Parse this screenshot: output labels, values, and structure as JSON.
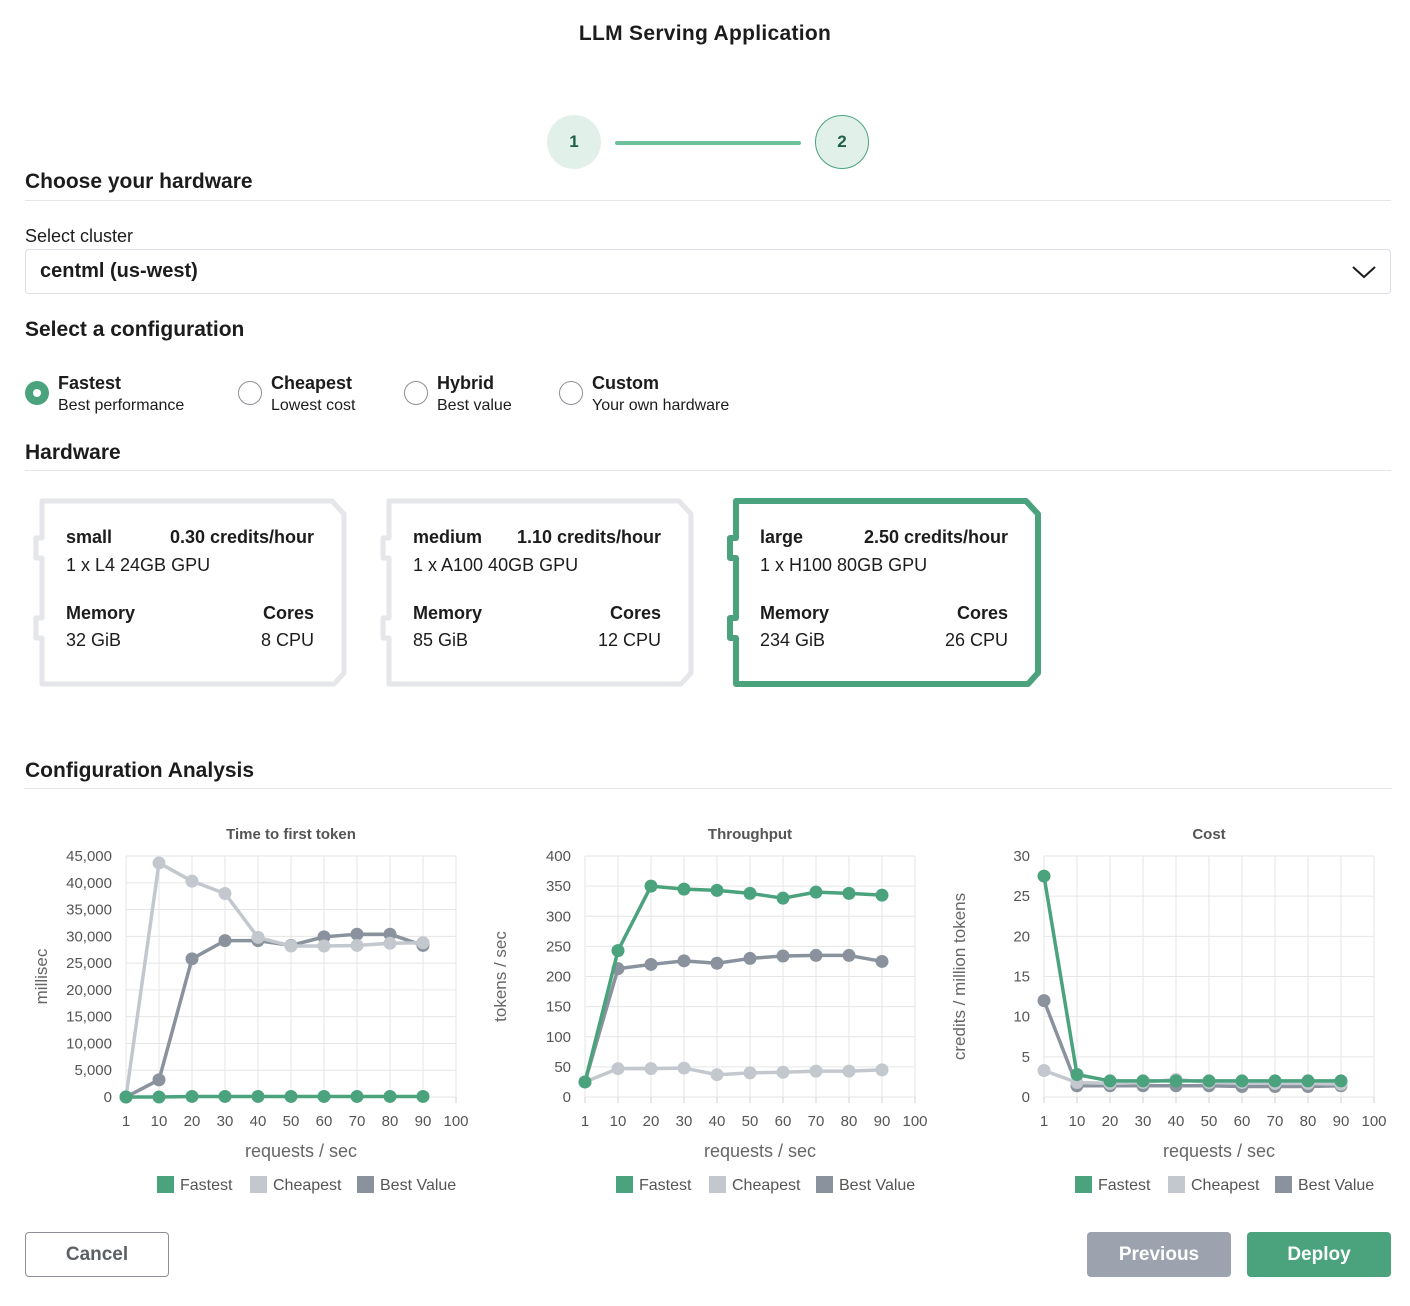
{
  "app": {
    "title": "LLM Serving Application"
  },
  "stepper": {
    "steps": [
      "1",
      "2"
    ]
  },
  "hardware_section": {
    "title": "Choose your hardware"
  },
  "cluster": {
    "label": "Select cluster",
    "selected": "centml (us-west)"
  },
  "configuration": {
    "title": "Select a configuration",
    "options": [
      {
        "title": "Fastest",
        "subtitle": "Best performance",
        "selected": true
      },
      {
        "title": "Cheapest",
        "subtitle": "Lowest cost",
        "selected": false
      },
      {
        "title": "Hybrid",
        "subtitle": "Best value",
        "selected": false
      },
      {
        "title": "Custom",
        "subtitle": "Your own hardware",
        "selected": false
      }
    ]
  },
  "hardware": {
    "title": "Hardware",
    "cards": [
      {
        "name": "small",
        "price": "0.30 credits/hour",
        "gpu": "1 x L4 24GB GPU",
        "memory_label": "Memory",
        "memory": "32 GiB",
        "cores_label": "Cores",
        "cores": "8 CPU",
        "selected": false
      },
      {
        "name": "medium",
        "price": "1.10 credits/hour",
        "gpu": "1 x A100 40GB GPU",
        "memory_label": "Memory",
        "memory": "85 GiB",
        "cores_label": "Cores",
        "cores": "12 CPU",
        "selected": false
      },
      {
        "name": "large",
        "price": "2.50 credits/hour",
        "gpu": "1 x H100 80GB GPU",
        "memory_label": "Memory",
        "memory": "234 GiB",
        "cores_label": "Cores",
        "cores": "26 CPU",
        "selected": true
      }
    ]
  },
  "analysis": {
    "title": "Configuration Analysis"
  },
  "colors": {
    "fastest": "#4aa37d",
    "cheapest": "#c3c8ce",
    "best_value": "#8a939d",
    "accent": "#4aa37d"
  },
  "chart_data": [
    {
      "type": "line",
      "title": "Time to first token",
      "xlabel": "requests / sec",
      "ylabel": "millisec",
      "x": [
        1,
        10,
        20,
        30,
        40,
        50,
        60,
        70,
        80,
        90
      ],
      "xticks": [
        "1",
        "10",
        "20",
        "30",
        "40",
        "50",
        "60",
        "70",
        "80",
        "90",
        "100"
      ],
      "yticks": [
        "0",
        "5,000",
        "10,000",
        "15,000",
        "20,000",
        "25,000",
        "30,000",
        "35,000",
        "40,000",
        "45,000"
      ],
      "ylim": [
        0,
        45000
      ],
      "grid": true,
      "legend": "bottom",
      "series": [
        {
          "name": "Fastest",
          "values": [
            0,
            0,
            100,
            100,
            100,
            100,
            100,
            100,
            100,
            100
          ]
        },
        {
          "name": "Cheapest",
          "values": [
            0,
            43700,
            40300,
            38000,
            29800,
            28200,
            28200,
            28300,
            28700,
            28800
          ]
        },
        {
          "name": "Best Value",
          "values": [
            0,
            3200,
            25800,
            29200,
            29200,
            28300,
            29900,
            30400,
            30400,
            28300
          ]
        }
      ]
    },
    {
      "type": "line",
      "title": "Throughput",
      "xlabel": "requests / sec",
      "ylabel": "tokens / sec",
      "x": [
        1,
        10,
        20,
        30,
        40,
        50,
        60,
        70,
        80,
        90
      ],
      "xticks": [
        "1",
        "10",
        "20",
        "30",
        "40",
        "50",
        "60",
        "70",
        "80",
        "90",
        "100"
      ],
      "yticks": [
        "0",
        "50",
        "100",
        "150",
        "200",
        "250",
        "300",
        "350",
        "400"
      ],
      "ylim": [
        0,
        400
      ],
      "grid": true,
      "legend": "bottom",
      "series": [
        {
          "name": "Fastest",
          "values": [
            25,
            243,
            350,
            345,
            343,
            338,
            330,
            340,
            338,
            335
          ]
        },
        {
          "name": "Cheapest",
          "values": [
            25,
            47,
            47,
            48,
            37,
            40,
            41,
            43,
            43,
            45
          ]
        },
        {
          "name": "Best Value",
          "values": [
            25,
            213,
            220,
            226,
            222,
            230,
            234,
            235,
            235,
            225
          ]
        }
      ]
    },
    {
      "type": "line",
      "title": "Cost",
      "xlabel": "requests / sec",
      "ylabel": "credits / million tokens",
      "x": [
        1,
        10,
        20,
        30,
        40,
        50,
        60,
        70,
        80,
        90
      ],
      "xticks": [
        "1",
        "10",
        "20",
        "30",
        "40",
        "50",
        "60",
        "70",
        "80",
        "90",
        "100"
      ],
      "yticks": [
        "0",
        "5",
        "10",
        "15",
        "20",
        "25",
        "30"
      ],
      "ylim": [
        0,
        30
      ],
      "grid": true,
      "legend": "bottom",
      "series": [
        {
          "name": "Fastest",
          "values": [
            27.5,
            2.8,
            2.0,
            2.0,
            2.0,
            2.0,
            2.0,
            2.0,
            2.0,
            2.0
          ]
        },
        {
          "name": "Cheapest",
          "values": [
            3.3,
            1.8,
            1.7,
            1.8,
            2.2,
            1.8,
            1.8,
            1.7,
            1.7,
            1.6
          ]
        },
        {
          "name": "Best Value",
          "values": [
            12.0,
            1.4,
            1.4,
            1.4,
            1.4,
            1.4,
            1.3,
            1.3,
            1.3,
            1.4
          ]
        }
      ]
    }
  ],
  "footer": {
    "cancel": "Cancel",
    "previous": "Previous",
    "deploy": "Deploy"
  }
}
